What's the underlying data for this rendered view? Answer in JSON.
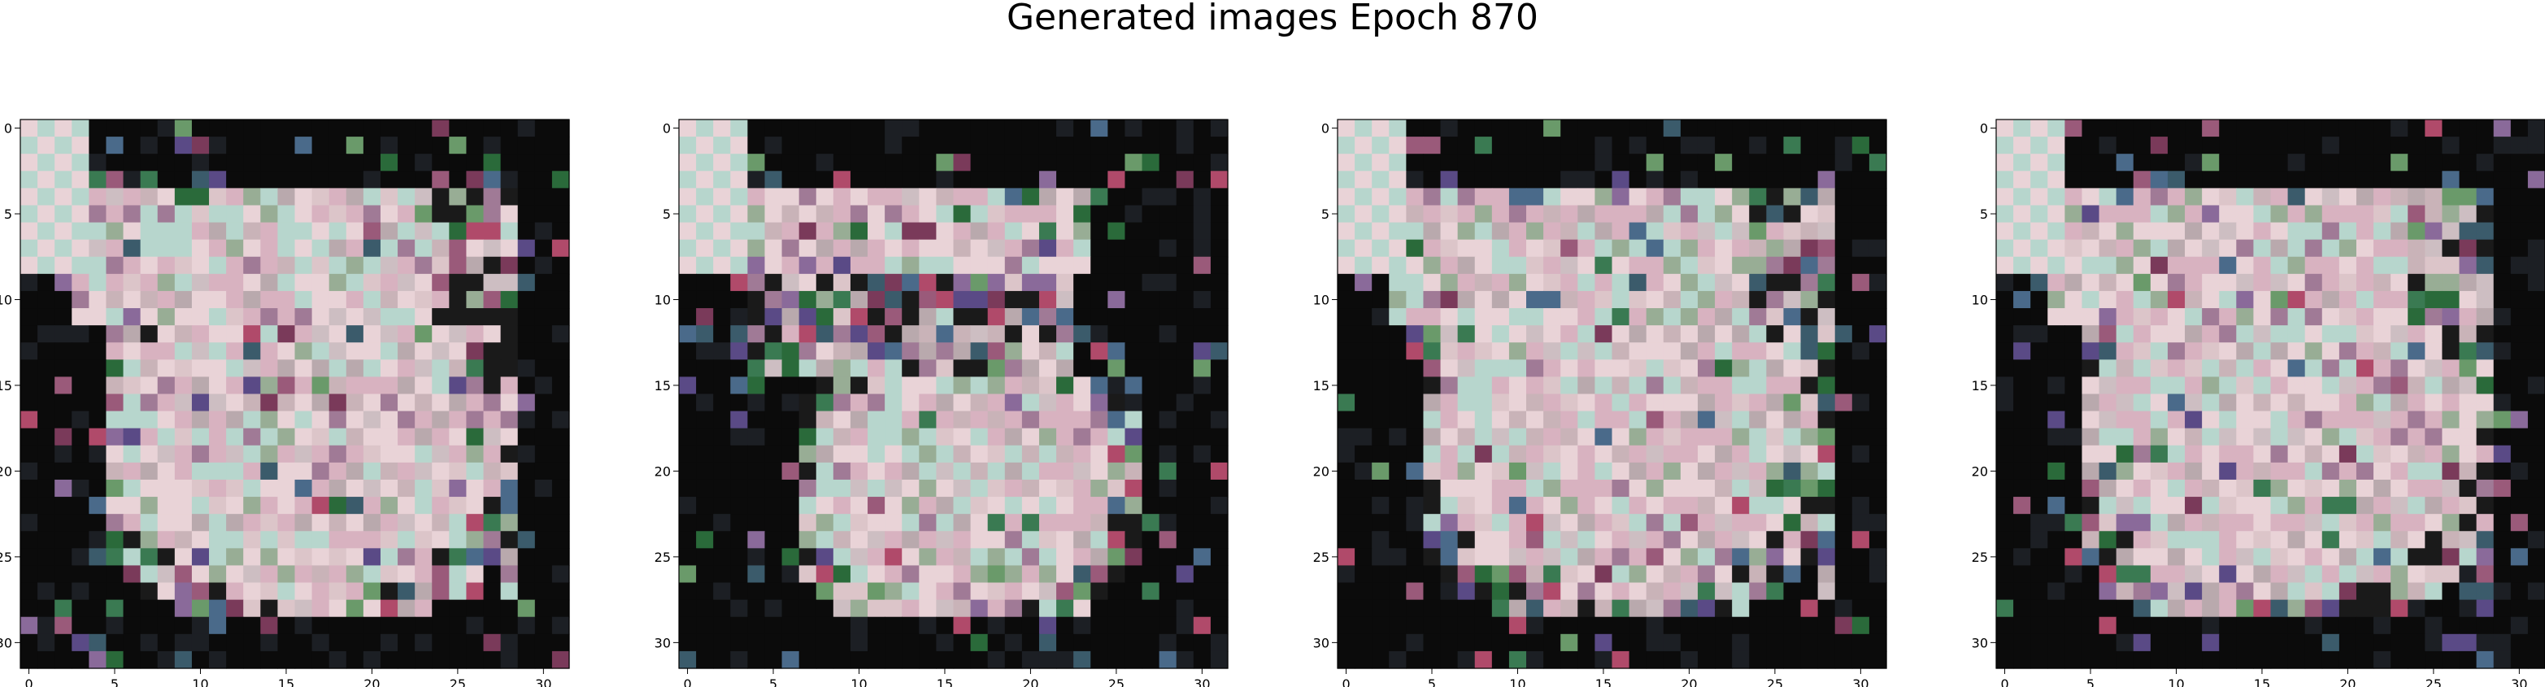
{
  "title": "Generated images Epoch 870",
  "panels": [
    {
      "name": "image-1"
    },
    {
      "name": "image-2"
    },
    {
      "name": "image-3"
    },
    {
      "name": "image-4"
    }
  ],
  "axes": {
    "xticks": [
      0,
      5,
      10,
      15,
      20,
      25,
      30
    ],
    "yticks": [
      0,
      5,
      10,
      15,
      20,
      25,
      30
    ],
    "range": [
      0,
      31
    ]
  },
  "image_size": 32,
  "palette": {
    "pink": "#d8b2c0",
    "light_pink": "#e9d3d7",
    "mint": "#b7d6cd",
    "sage": "#98ad95",
    "mauve": "#a07a96",
    "dark": "#0b0b0b"
  }
}
